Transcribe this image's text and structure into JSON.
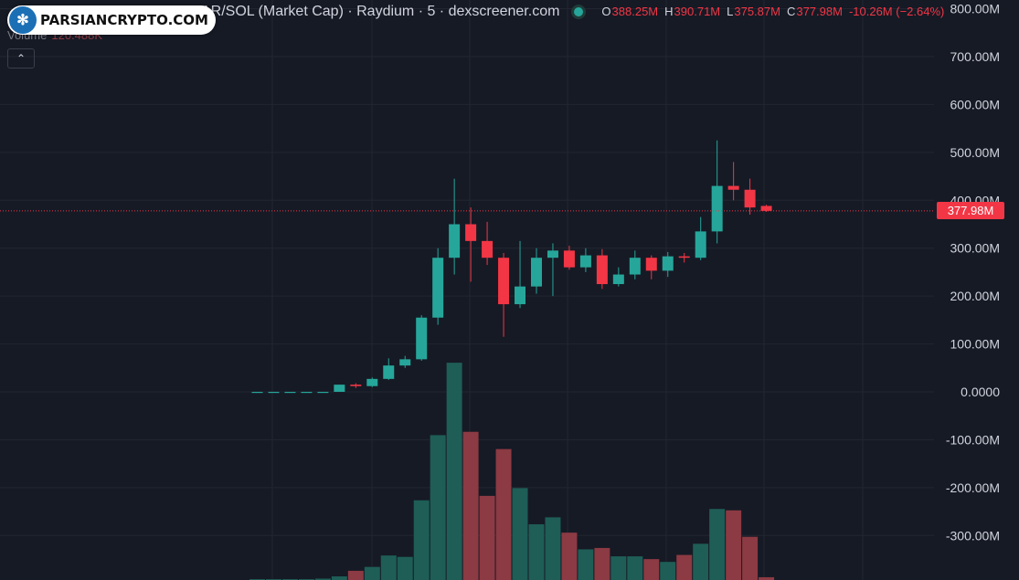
{
  "header": {
    "title": "AR/SOL (Market Cap) · Raydium · 5 · dexscreener.com",
    "ohlc": [
      {
        "key": "O",
        "value": "388.25M"
      },
      {
        "key": "H",
        "value": "390.71M"
      },
      {
        "key": "L",
        "value": "375.87M"
      },
      {
        "key": "C",
        "value": "377.98M"
      }
    ],
    "change": "-10.26M (−2.64%)",
    "volume_label": "Volume",
    "volume_value": "120.488K",
    "collapse_icon": "chevron-up-icon"
  },
  "watermark": {
    "text": "PARSIANCRYPTO.COM",
    "icon": "brain-icon"
  },
  "last_price": {
    "label": "377.98M",
    "value": 377.98
  },
  "colors": {
    "bg": "#161a25",
    "up": "#26a69a",
    "down": "#f23645",
    "vol_up": "#1e5e57",
    "vol_down": "#8c3a43",
    "grid": "#222631",
    "axis_text": "#d1d4dc"
  },
  "chart_data": {
    "type": "candlestick",
    "y_unit": "M",
    "ylim": [
      -390,
      800
    ],
    "y_ticks": [
      800,
      700,
      600,
      500,
      400,
      300,
      200,
      100,
      0,
      -100,
      -200,
      -300
    ],
    "y_tick_labels": [
      "800.00M",
      "700.00M",
      "600.00M",
      "500.00M",
      "400.00M",
      "300.00M",
      "200.00M",
      "100.00M",
      "0.0000",
      "-100.00M",
      "-200.00M",
      "-300.00M"
    ],
    "candles": [
      {
        "o": 0,
        "h": 0,
        "l": 0,
        "c": 0
      },
      {
        "o": 0,
        "h": 0,
        "l": 0,
        "c": 0
      },
      {
        "o": 0,
        "h": 0,
        "l": 0,
        "c": 0
      },
      {
        "o": 0,
        "h": 0,
        "l": 0,
        "c": 0
      },
      {
        "o": 0,
        "h": 0,
        "l": 0,
        "c": 0
      },
      {
        "o": 0,
        "h": 15,
        "l": 0,
        "c": 15
      },
      {
        "o": 15,
        "h": 18,
        "l": 8,
        "c": 12
      },
      {
        "o": 12,
        "h": 30,
        "l": 10,
        "c": 27
      },
      {
        "o": 27,
        "h": 70,
        "l": 25,
        "c": 55
      },
      {
        "o": 55,
        "h": 75,
        "l": 50,
        "c": 68
      },
      {
        "o": 68,
        "h": 160,
        "l": 65,
        "c": 155
      },
      {
        "o": 155,
        "h": 300,
        "l": 140,
        "c": 280
      },
      {
        "o": 280,
        "h": 445,
        "l": 245,
        "c": 350
      },
      {
        "o": 350,
        "h": 385,
        "l": 230,
        "c": 315
      },
      {
        "o": 315,
        "h": 355,
        "l": 265,
        "c": 280
      },
      {
        "o": 280,
        "h": 290,
        "l": 115,
        "c": 183
      },
      {
        "o": 183,
        "h": 315,
        "l": 175,
        "c": 220
      },
      {
        "o": 220,
        "h": 300,
        "l": 205,
        "c": 280
      },
      {
        "o": 280,
        "h": 310,
        "l": 200,
        "c": 295
      },
      {
        "o": 295,
        "h": 305,
        "l": 255,
        "c": 260
      },
      {
        "o": 260,
        "h": 300,
        "l": 250,
        "c": 285
      },
      {
        "o": 285,
        "h": 298,
        "l": 215,
        "c": 225
      },
      {
        "o": 225,
        "h": 260,
        "l": 220,
        "c": 245
      },
      {
        "o": 245,
        "h": 295,
        "l": 235,
        "c": 280
      },
      {
        "o": 280,
        "h": 285,
        "l": 235,
        "c": 253
      },
      {
        "o": 253,
        "h": 292,
        "l": 240,
        "c": 283
      },
      {
        "o": 283,
        "h": 290,
        "l": 270,
        "c": 280
      },
      {
        "o": 280,
        "h": 365,
        "l": 275,
        "c": 335
      },
      {
        "o": 335,
        "h": 525,
        "l": 310,
        "c": 430
      },
      {
        "o": 430,
        "h": 480,
        "l": 400,
        "c": 422
      },
      {
        "o": 422,
        "h": 445,
        "l": 370,
        "c": 385
      },
      {
        "o": 388.25,
        "h": 390.71,
        "l": 375.87,
        "c": 377.98
      }
    ],
    "volumes": [
      0.3,
      0.3,
      0.3,
      0.3,
      0.5,
      1.3,
      3.3,
      4.7,
      8.8,
      8.3,
      28.6,
      52.0,
      78.0,
      53.2,
      30.2,
      47.0,
      33.0,
      20.0,
      22.5,
      17.0,
      11.0,
      11.5,
      8.5,
      8.5,
      7.5,
      6.5,
      9.0,
      13.0,
      25.5,
      25.0,
      15.5,
      1.0
    ]
  }
}
